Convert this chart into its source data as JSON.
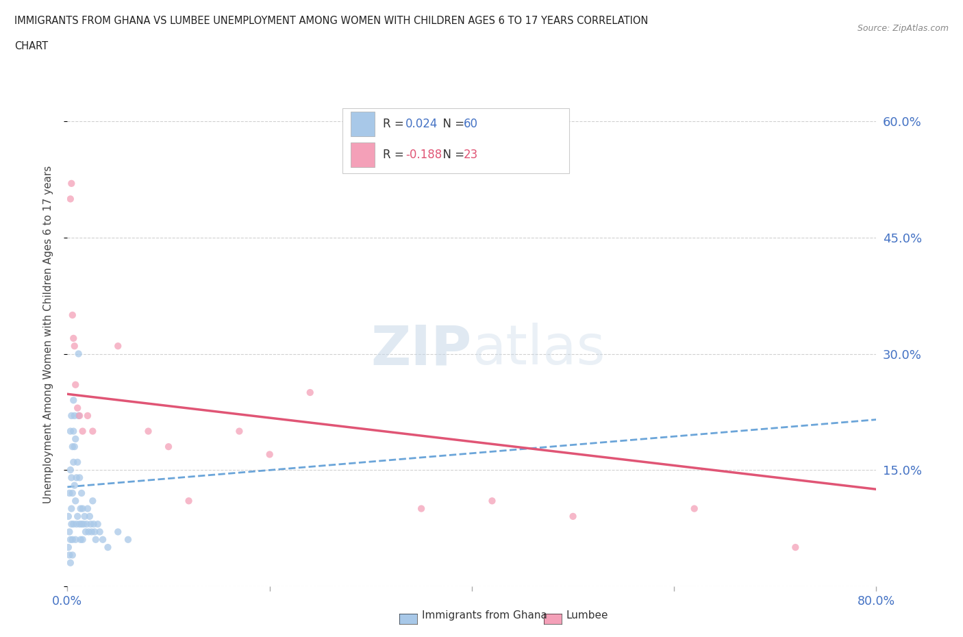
{
  "title_line1": "IMMIGRANTS FROM GHANA VS LUMBEE UNEMPLOYMENT AMONG WOMEN WITH CHILDREN AGES 6 TO 17 YEARS CORRELATION",
  "title_line2": "CHART",
  "source": "Source: ZipAtlas.com",
  "ylabel": "Unemployment Among Women with Children Ages 6 to 17 years",
  "xlim": [
    0.0,
    0.8
  ],
  "ylim": [
    0.0,
    0.65
  ],
  "ghana_color": "#a8c8e8",
  "lumbee_color": "#f4a0b8",
  "ghana_R": "0.024",
  "ghana_N": "60",
  "lumbee_R": "-0.188",
  "lumbee_N": "23",
  "ghana_scatter_x": [
    0.001,
    0.001,
    0.002,
    0.002,
    0.002,
    0.003,
    0.003,
    0.003,
    0.003,
    0.004,
    0.004,
    0.004,
    0.004,
    0.005,
    0.005,
    0.005,
    0.005,
    0.006,
    0.006,
    0.006,
    0.006,
    0.007,
    0.007,
    0.007,
    0.008,
    0.008,
    0.008,
    0.009,
    0.009,
    0.01,
    0.01,
    0.011,
    0.011,
    0.012,
    0.012,
    0.013,
    0.013,
    0.014,
    0.014,
    0.015,
    0.015,
    0.016,
    0.017,
    0.018,
    0.019,
    0.02,
    0.021,
    0.022,
    0.023,
    0.024,
    0.025,
    0.026,
    0.027,
    0.028,
    0.03,
    0.032,
    0.035,
    0.04,
    0.05,
    0.06
  ],
  "ghana_scatter_y": [
    0.05,
    0.09,
    0.07,
    0.12,
    0.04,
    0.15,
    0.2,
    0.06,
    0.03,
    0.1,
    0.14,
    0.22,
    0.08,
    0.18,
    0.12,
    0.06,
    0.04,
    0.2,
    0.16,
    0.24,
    0.08,
    0.22,
    0.18,
    0.13,
    0.11,
    0.19,
    0.06,
    0.14,
    0.08,
    0.09,
    0.16,
    0.22,
    0.3,
    0.14,
    0.08,
    0.1,
    0.06,
    0.12,
    0.08,
    0.1,
    0.06,
    0.08,
    0.09,
    0.07,
    0.08,
    0.1,
    0.07,
    0.09,
    0.08,
    0.07,
    0.11,
    0.08,
    0.07,
    0.06,
    0.08,
    0.07,
    0.06,
    0.05,
    0.07,
    0.06
  ],
  "lumbee_scatter_x": [
    0.003,
    0.004,
    0.005,
    0.006,
    0.007,
    0.008,
    0.01,
    0.012,
    0.015,
    0.02,
    0.025,
    0.05,
    0.08,
    0.1,
    0.12,
    0.17,
    0.2,
    0.24,
    0.35,
    0.42,
    0.5,
    0.62,
    0.72
  ],
  "lumbee_scatter_y": [
    0.5,
    0.52,
    0.35,
    0.32,
    0.31,
    0.26,
    0.23,
    0.22,
    0.2,
    0.22,
    0.2,
    0.31,
    0.2,
    0.18,
    0.11,
    0.2,
    0.17,
    0.25,
    0.1,
    0.11,
    0.09,
    0.1,
    0.05
  ],
  "ghana_trend_x": [
    0.0,
    0.8
  ],
  "ghana_trend_y_start": 0.128,
  "ghana_trend_y_end": 0.215,
  "lumbee_trend_x": [
    0.0,
    0.8
  ],
  "lumbee_trend_y_start": 0.248,
  "lumbee_trend_y_end": 0.125,
  "watermark_zip": "ZIP",
  "watermark_atlas": "atlas",
  "background_color": "#ffffff",
  "grid_color": "#d0d0d0",
  "title_color": "#222222",
  "axis_label_color": "#444444",
  "tick_color_blue": "#4472c4",
  "legend_ghana_R_color": "#4472c4",
  "legend_lumbee_R_color": "#e05575",
  "scatter_size": 55,
  "scatter_alpha": 0.75
}
